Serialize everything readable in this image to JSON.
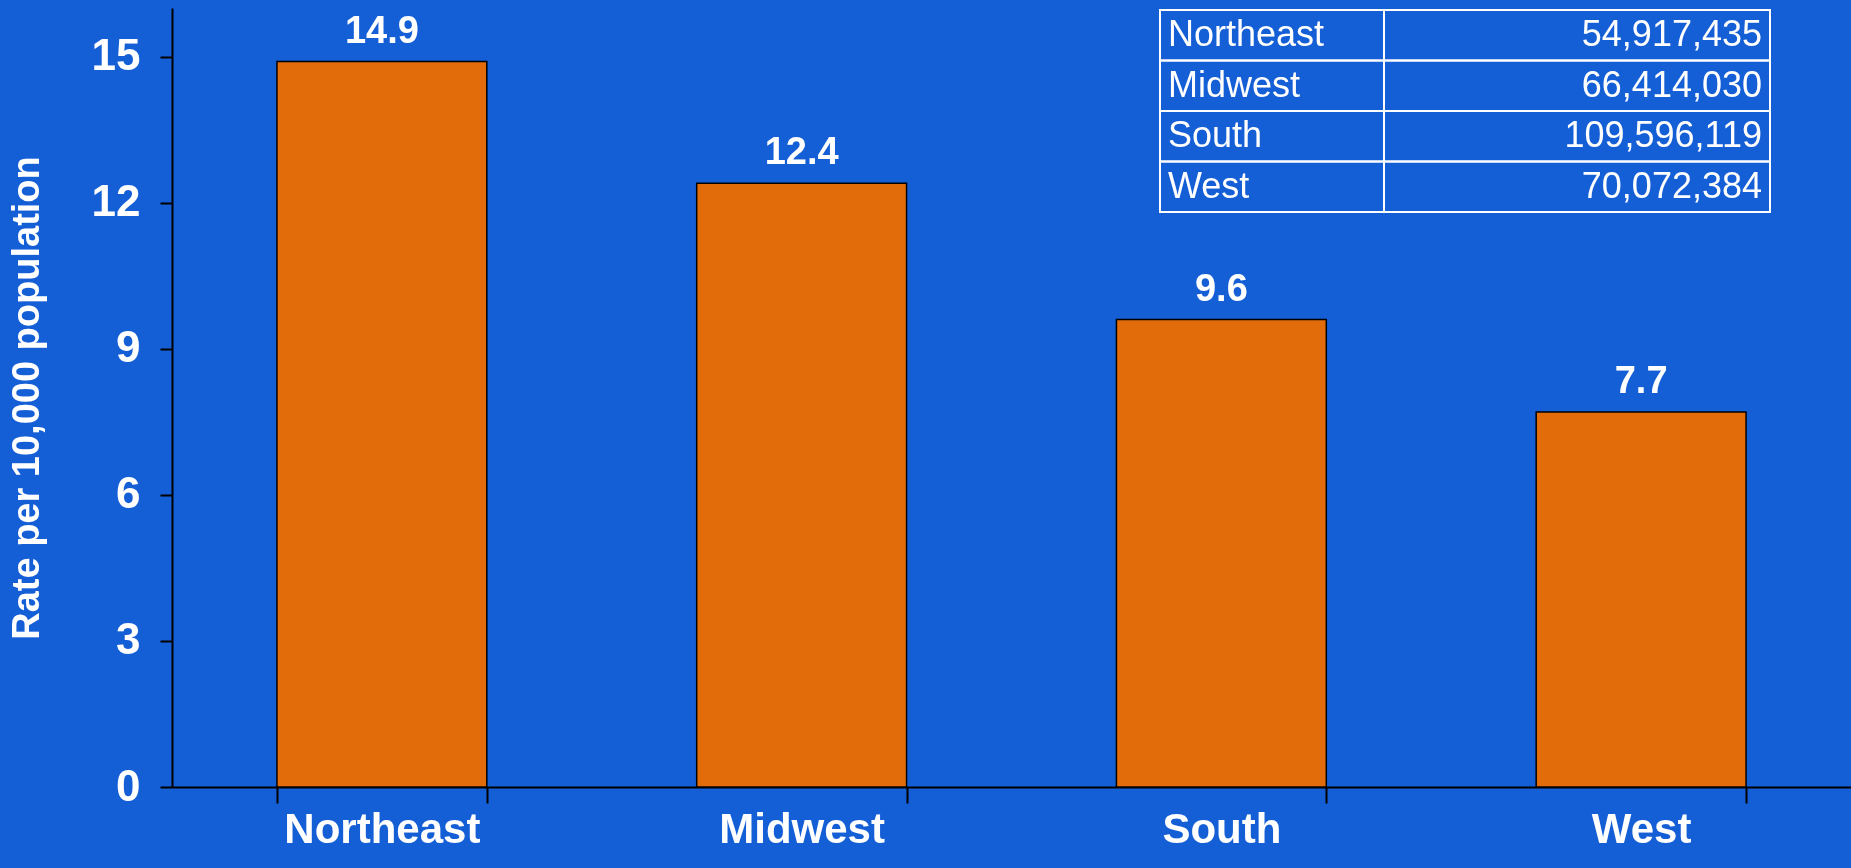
{
  "chart_data": {
    "type": "bar",
    "ylabel": "Rate per 10,000 population",
    "categories": [
      "Northeast",
      "Midwest",
      "South",
      "West"
    ],
    "values": [
      14.9,
      12.4,
      9.6,
      7.7
    ],
    "color": "#e36c0a",
    "ylim": [
      0,
      16
    ],
    "yticks": [
      0,
      3,
      6,
      9,
      12,
      15
    ],
    "grid": false,
    "data_labels": true,
    "annotations": [
      "Northeast",
      "54,917,435",
      "Midwest",
      "66,414,030",
      "South",
      "109,596,119",
      "West",
      "70,072,384"
    ]
  }
}
